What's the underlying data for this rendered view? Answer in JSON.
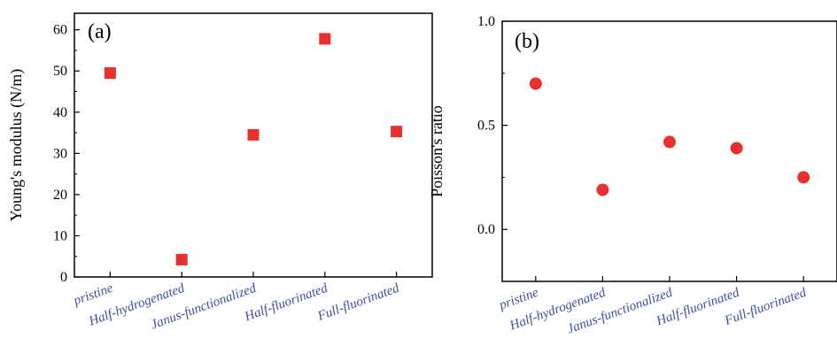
{
  "colors": {
    "marker": "#e8312e",
    "category_text": "#3b4fa0",
    "axis": "#000000"
  },
  "chart_data": [
    {
      "type": "scatter",
      "panel_label": "(a)",
      "marker": "square",
      "categories": [
        "pristine",
        "Half-hydrogenated",
        "Janus-functionalized",
        "Half-fluorinated",
        "Full-fluorinated"
      ],
      "values": [
        49.5,
        4.2,
        34.5,
        57.8,
        35.3
      ],
      "ylabel": "Young's modulus (N/m)",
      "xlabel": "",
      "ylim": [
        0,
        64
      ],
      "yticks": [
        0,
        10,
        20,
        30,
        40,
        50,
        60
      ],
      "yticklabels": [
        "0",
        "10",
        "20",
        "30",
        "40",
        "50",
        "60"
      ],
      "grid": false
    },
    {
      "type": "scatter",
      "panel_label": "(b)",
      "marker": "circle",
      "categories": [
        "pristine",
        "Half-hydrogenated",
        "Janus-functionalized",
        "Half-fluorinated",
        "Full-fluorinated"
      ],
      "values": [
        0.7,
        0.19,
        0.42,
        0.39,
        0.25
      ],
      "ylabel": "Poisson's ratio",
      "xlabel": "",
      "ylim": [
        -0.25,
        1.0
      ],
      "yticks": [
        0.0,
        0.5,
        1.0
      ],
      "yticklabels": [
        "0.0",
        "0.5",
        "1.0"
      ],
      "grid": false
    }
  ]
}
